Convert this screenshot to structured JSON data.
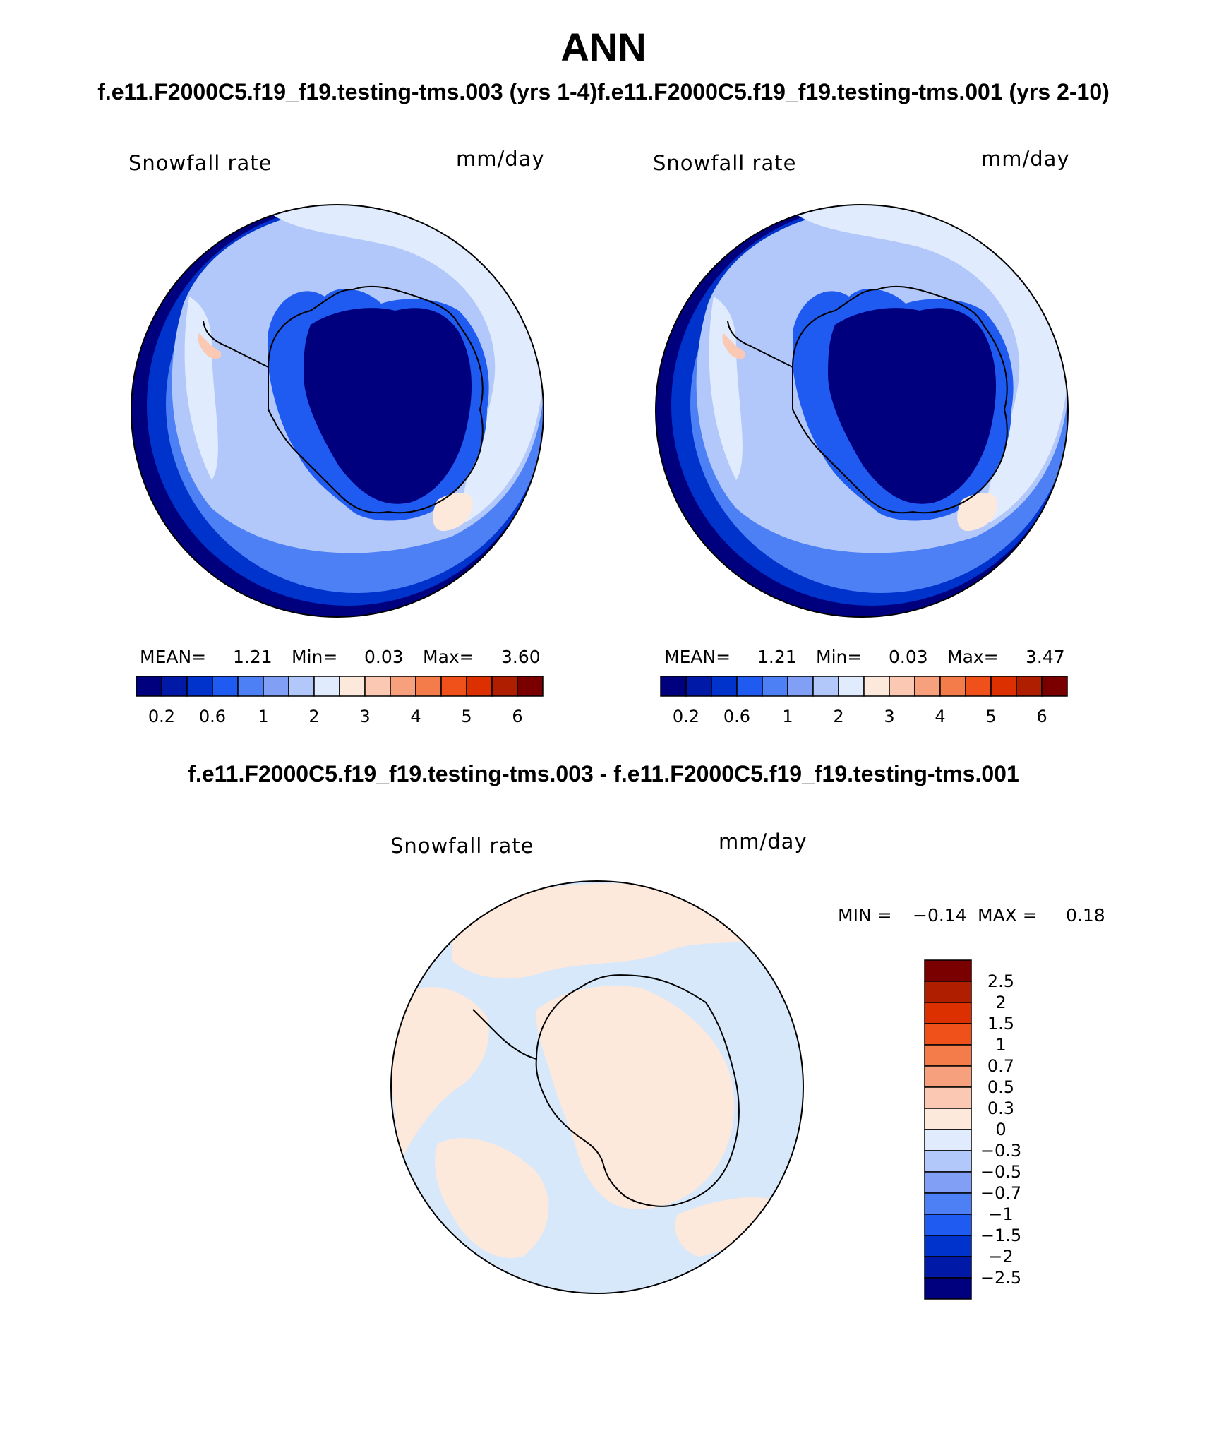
{
  "header": {
    "title": "ANN",
    "subtitle": "f.e11.F2000C5.f19_f19.testing-tms.003 (yrs 1-4)f.e11.F2000C5.f19_f19.testing-tms.001 (yrs 2-10)",
    "diff_title": "f.e11.F2000C5.f19_f19.testing-tms.003 - f.e11.F2000C5.f19_f19.testing-tms.001"
  },
  "panels": [
    {
      "variable": "Snowfall rate",
      "units": "mm/day",
      "mean_label": "MEAN=",
      "mean_value": "1.21",
      "min_label": "Min=",
      "min_value": "0.03",
      "max_label": "Max=",
      "max_value": "3.60"
    },
    {
      "variable": "Snowfall rate",
      "units": "mm/day",
      "mean_label": "MEAN=",
      "mean_value": "1.21",
      "min_label": "Min=",
      "min_value": "0.03",
      "max_label": "Max=",
      "max_value": "3.47"
    }
  ],
  "abs_colorbar": {
    "ticks": [
      "0.2",
      "0.6",
      "1",
      "2",
      "3",
      "4",
      "5",
      "6"
    ],
    "colors": [
      "#00007f",
      "#0019a6",
      "#0033cc",
      "#1f5bf0",
      "#4d80f5",
      "#809ff5",
      "#b3c8fa",
      "#e0ecfe",
      "#fde8dc",
      "#fbc9b3",
      "#f7a07d",
      "#f47c4a",
      "#f0501a",
      "#dd3000",
      "#b01e00",
      "#7a0000"
    ]
  },
  "diff_panel": {
    "variable": "Snowfall rate",
    "units": "mm/day",
    "min_label": "MIN =",
    "min_value": "−0.14",
    "max_label": "MAX =",
    "max_value": "0.18"
  },
  "diff_colorbar": {
    "ticks": [
      "2.5",
      "2",
      "1.5",
      "1",
      "0.7",
      "0.5",
      "0.3",
      "0",
      "−0.3",
      "−0.5",
      "−0.7",
      "−1",
      "−1.5",
      "−2",
      "−2.5"
    ],
    "colors": [
      "#7a0000",
      "#b01e00",
      "#dd3000",
      "#f0501a",
      "#f47c4a",
      "#f7a07d",
      "#fbc9b3",
      "#fde8dc",
      "#e0ecfe",
      "#b3c8fa",
      "#809ff5",
      "#4d80f5",
      "#1f5bf0",
      "#0033cc",
      "#0019a6",
      "#00007f"
    ]
  },
  "map_colors": {
    "outer_ring": "#00007f",
    "ocean_1": "#0033cc",
    "ocean_2": "#4d80f5",
    "ocean_3": "#b3c8fa",
    "ocean_4": "#e0ecfe",
    "continent": "#00007f",
    "continent_edge": "#1f5bf0",
    "positive_patch": "#fbc9b3",
    "diff_negative": "#d7e8fb",
    "diff_positive": "#fde8dc"
  }
}
